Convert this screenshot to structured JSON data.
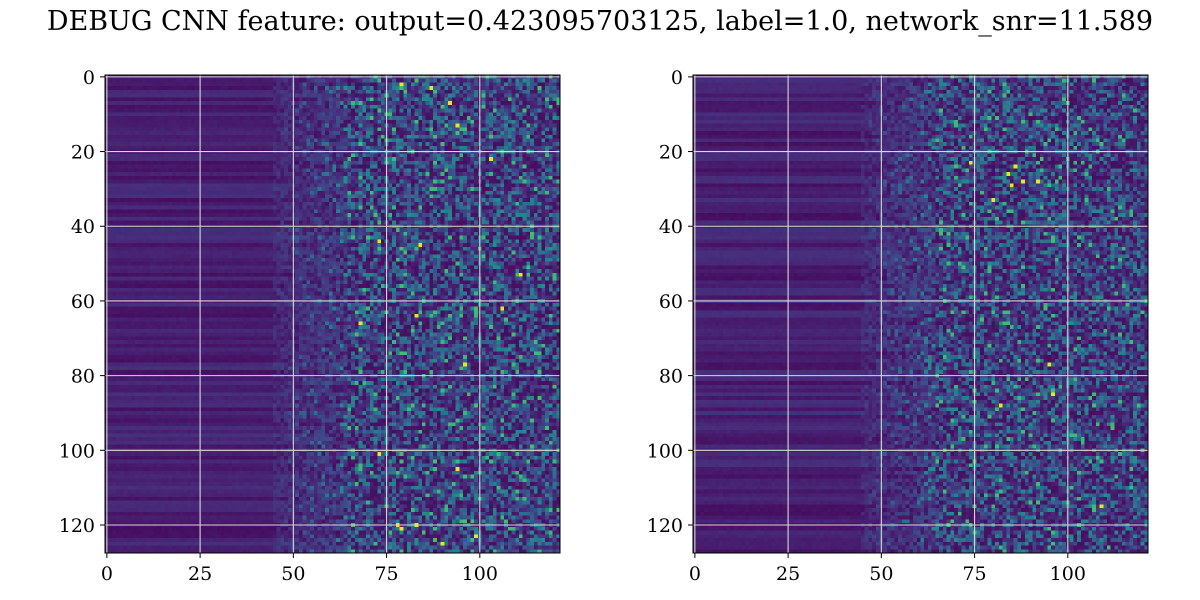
{
  "title": "DEBUG CNN feature: output=0.423095703125, label=1.0, network_snr=11.589",
  "chart_data": [
    {
      "type": "heatmap",
      "colormap": "viridis",
      "grid": true,
      "rows": 128,
      "cols": 122,
      "xlim": [
        -0.5,
        121.5
      ],
      "ylim": [
        127.5,
        -0.5
      ],
      "xticks": [
        0,
        25,
        50,
        75,
        100
      ],
      "yticks": [
        0,
        20,
        40,
        60,
        80,
        100,
        120
      ],
      "bright_spots": [
        [
          2,
          79
        ],
        [
          3,
          87
        ],
        [
          7,
          92
        ],
        [
          13,
          94
        ],
        [
          22,
          103
        ],
        [
          44,
          73
        ],
        [
          45,
          84
        ],
        [
          53,
          111
        ],
        [
          62,
          106
        ],
        [
          64,
          83
        ],
        [
          66,
          68
        ],
        [
          77,
          96
        ],
        [
          101,
          73
        ],
        [
          105,
          94
        ],
        [
          120,
          78
        ],
        [
          120,
          83
        ],
        [
          121,
          79
        ],
        [
          123,
          99
        ],
        [
          125,
          90
        ]
      ],
      "seed": 11
    },
    {
      "type": "heatmap",
      "colormap": "viridis",
      "grid": true,
      "rows": 128,
      "cols": 122,
      "xlim": [
        -0.5,
        121.5
      ],
      "ylim": [
        127.5,
        -0.5
      ],
      "xticks": [
        0,
        25,
        50,
        75,
        100
      ],
      "yticks": [
        0,
        20,
        40,
        60,
        80,
        100,
        120
      ],
      "bright_spots": [
        [
          24,
          86
        ],
        [
          26,
          84
        ],
        [
          28,
          88
        ],
        [
          29,
          85
        ],
        [
          28,
          92
        ],
        [
          33,
          80
        ],
        [
          77,
          95
        ],
        [
          85,
          96
        ],
        [
          88,
          82
        ],
        [
          23,
          74
        ],
        [
          115,
          109
        ]
      ],
      "seed": 29
    }
  ]
}
